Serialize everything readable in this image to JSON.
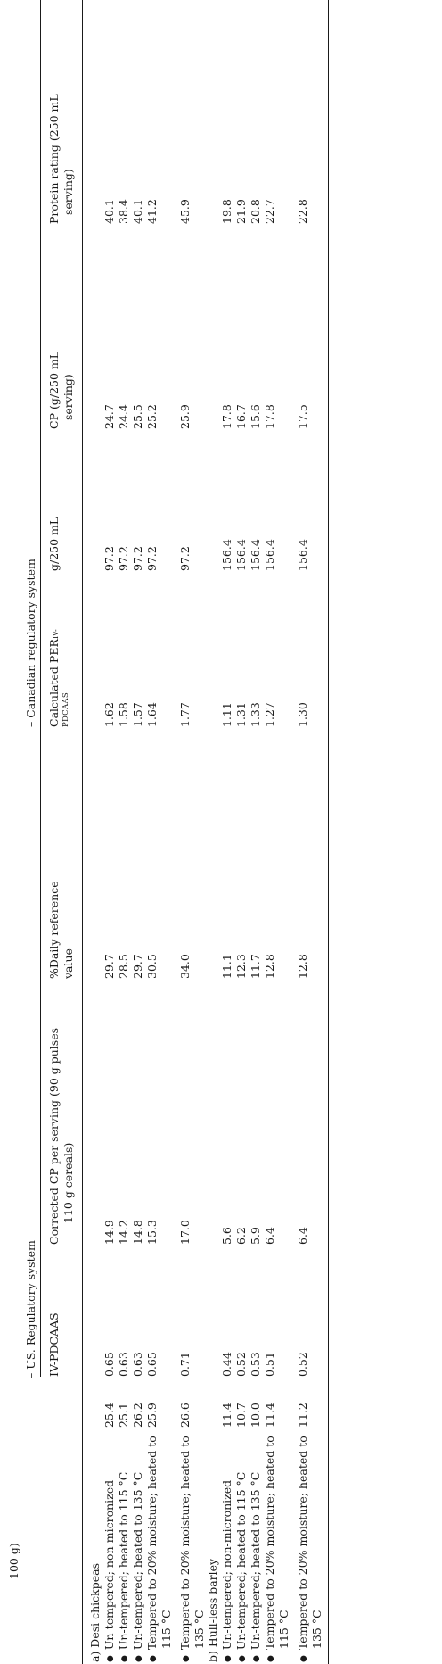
{
  "header": {
    "cp_unit_tail": "100 g)",
    "us_group": "– US. Regulatory system",
    "canadian_group": "– Canadian regulatory system",
    "columns": {
      "ivpdcaas": "IV-PDCAAS",
      "corrected_cp_line1": "Corrected CP per serving (90 g pulses",
      "corrected_cp_line2": "110 g cereals)",
      "daily_ref_line1": "%Daily reference",
      "daily_ref_line2": "value",
      "per_line1_main": "Calculated PER",
      "per_line1_sub": "IV-",
      "per_line2": "PDCAAS",
      "g250": "g/250 mL",
      "cp250_line1": "CP (g/250 mL",
      "cp250_line2": "serving)",
      "protein_rating_line1": "Protein rating (250 mL",
      "protein_rating_line2": "serving)"
    }
  },
  "sections": [
    {
      "title": "a) Desi chickpeas",
      "rows": [
        {
          "label": "Un-tempered; non-micronized",
          "cp": "25.4",
          "ivpdcaas": "0.65",
          "corrected_cp": "14.9",
          "daily_ref": "29.7",
          "per": "1.62",
          "g250": "97.2",
          "cp250": "24.7",
          "protein_rating": "40.1"
        },
        {
          "label": "Un-tempered; heated to 115 °C",
          "cp": "25.1",
          "ivpdcaas": "0.63",
          "corrected_cp": "14.2",
          "daily_ref": "28.5",
          "per": "1.58",
          "g250": "97.2",
          "cp250": "24.4",
          "protein_rating": "38.4"
        },
        {
          "label": "Un-tempered; heated to 135 °C",
          "cp": "26.2",
          "ivpdcaas": "0.63",
          "corrected_cp": "14.8",
          "daily_ref": "29.7",
          "per": "1.57",
          "g250": "97.2",
          "cp250": "25.5",
          "protein_rating": "40.1"
        },
        {
          "label": "Tempered to 20% moisture; heated to",
          "label2": "115 °C",
          "cp": "25.9",
          "ivpdcaas": "0.65",
          "corrected_cp": "15.3",
          "daily_ref": "30.5",
          "per": "1.64",
          "g250": "97.2",
          "cp250": "25.2",
          "protein_rating": "41.2"
        },
        {
          "label": "Tempered to 20% moisture; heated to",
          "label2": "135 °C",
          "cp": "26.6",
          "ivpdcaas": "0.71",
          "corrected_cp": "17.0",
          "daily_ref": "34.0",
          "per": "1.77",
          "g250": "97.2",
          "cp250": "25.9",
          "protein_rating": "45.9"
        }
      ]
    },
    {
      "title": "b) Hull-less barley",
      "rows": [
        {
          "label": "Un-tempered; non-micronized",
          "cp": "11.4",
          "ivpdcaas": "0.44",
          "corrected_cp": "5.6",
          "daily_ref": "11.1",
          "per": "1.11",
          "g250": "156.4",
          "cp250": "17.8",
          "protein_rating": "19.8"
        },
        {
          "label": "Un-tempered; heated to 115 °C",
          "cp": "10.7",
          "ivpdcaas": "0.52",
          "corrected_cp": "6.2",
          "daily_ref": "12.3",
          "per": "1.31",
          "g250": "156.4",
          "cp250": "16.7",
          "protein_rating": "21.9"
        },
        {
          "label": "Un-tempered; heated to 135 °C",
          "cp": "10.0",
          "ivpdcaas": "0.53",
          "corrected_cp": "5.9",
          "daily_ref": "11.7",
          "per": "1.33",
          "g250": "156.4",
          "cp250": "15.6",
          "protein_rating": "20.8"
        },
        {
          "label": "Tempered to 20% moisture; heated to",
          "label2": "115 °C",
          "cp": "11.4",
          "ivpdcaas": "0.51",
          "corrected_cp": "6.4",
          "daily_ref": "12.8",
          "per": "1.27",
          "g250": "156.4",
          "cp250": "17.8",
          "protein_rating": "22.7"
        },
        {
          "label": "Tempered to 20% moisture; heated to",
          "label2": "135 °C",
          "cp": "11.2",
          "ivpdcaas": "0.52",
          "corrected_cp": "6.4",
          "daily_ref": "12.8",
          "per": "1.30",
          "g250": "156.4",
          "cp250": "17.5",
          "protein_rating": "22.8"
        }
      ]
    }
  ]
}
